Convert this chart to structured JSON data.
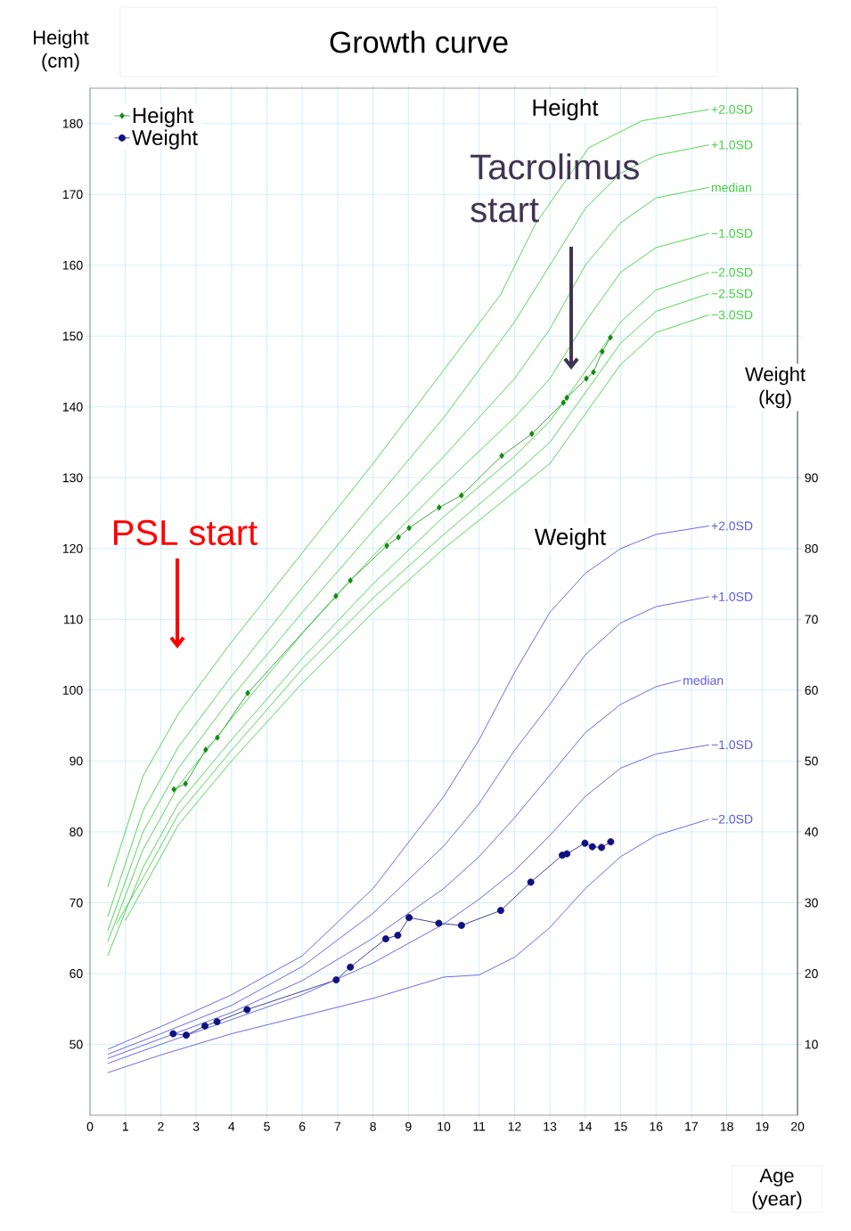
{
  "chart_data": {
    "type": "line",
    "title": "Growth curve",
    "xlabel": "Age (year)",
    "ylabel": "Height (cm)",
    "y2label": "Weight (kg)",
    "xlim": [
      0,
      20
    ],
    "xticks": [
      0,
      1,
      2,
      3,
      4,
      5,
      6,
      7,
      8,
      9,
      10,
      11,
      12,
      13,
      14,
      15,
      16,
      17,
      18,
      19,
      20
    ],
    "ylim": [
      40,
      185
    ],
    "yticks": [
      50,
      60,
      70,
      80,
      90,
      100,
      110,
      120,
      130,
      140,
      150,
      160,
      170,
      180
    ],
    "y2lim": [
      0,
      145
    ],
    "y2ticks": [
      10,
      20,
      30,
      40,
      50,
      60,
      70,
      80,
      90
    ],
    "grid": true,
    "legend": "top left",
    "annotations": [
      "PSL start",
      "Tacrolimus start",
      "Height",
      "Weight"
    ],
    "series": [
      {
        "name": "Height",
        "color": "#108a10",
        "marker": "diamond",
        "x": [
          2.37,
          2.7,
          3.27,
          3.6,
          4.46,
          6.95,
          7.36,
          8.39,
          8.72,
          9.02,
          9.87,
          10.5,
          11.64,
          12.49,
          13.38,
          13.48,
          14.03,
          14.23,
          14.48,
          14.71
        ],
        "values": [
          86.0,
          86.8,
          91.6,
          93.3,
          99.6,
          113.3,
          115.5,
          120.4,
          121.6,
          122.9,
          125.8,
          127.5,
          133.1,
          136.2,
          140.6,
          141.3,
          144.0,
          144.9,
          147.8,
          149.8
        ]
      },
      {
        "name": "Weight",
        "color": "#101080",
        "marker": "circle",
        "axis": "y2",
        "x": [
          2.35,
          2.72,
          3.25,
          3.59,
          4.44,
          6.96,
          7.36,
          8.36,
          8.7,
          9.02,
          9.86,
          10.5,
          11.61,
          12.46,
          13.35,
          13.48,
          13.99,
          14.2,
          14.46,
          14.72
        ],
        "values": [
          11.5,
          11.3,
          12.6,
          13.2,
          14.9,
          19.1,
          20.9,
          24.9,
          25.4,
          27.9,
          27.1,
          26.8,
          28.9,
          32.9,
          36.7,
          36.9,
          38.4,
          37.9,
          37.8,
          38.6
        ]
      },
      {
        "name": "+2.0SD",
        "color": "#44d044",
        "marker": "none",
        "x": [
          0.5,
          1.5,
          2.5,
          4,
          6,
          8,
          10,
          11.6,
          12.6,
          14.1,
          15.6,
          17.5
        ],
        "values": [
          72.2,
          87.9,
          96.7,
          106.8,
          119.4,
          132,
          145.2,
          155.8,
          165.9,
          176.6,
          180.4,
          182
        ]
      },
      {
        "name": "+1.0SD",
        "color": "#44d044",
        "marker": "none",
        "x": [
          0.5,
          1.5,
          2.5,
          4,
          6,
          8,
          10,
          12,
          13,
          14,
          15,
          16,
          17.5
        ],
        "values": [
          68,
          83,
          92,
          102,
          114.5,
          126.5,
          138.5,
          152,
          160,
          168,
          173,
          175.5,
          177
        ]
      },
      {
        "name": "median",
        "color": "#44d044",
        "marker": "none",
        "x": [
          0.5,
          1.5,
          2.5,
          4,
          6,
          8,
          10,
          12,
          13,
          14,
          15,
          16,
          17.5
        ],
        "values": [
          66,
          80,
          89,
          99,
          111,
          122.5,
          133,
          144,
          151,
          160,
          166,
          169.5,
          171
        ]
      },
      {
        "name": "−1.0SD",
        "color": "#44d044",
        "marker": "none",
        "x": [
          0.5,
          1.5,
          2.5,
          4,
          6,
          8,
          10,
          12,
          13,
          14,
          15,
          16,
          17.5
        ],
        "values": [
          64.5,
          77.5,
          86.5,
          96,
          108,
          119,
          129,
          138.5,
          144,
          152,
          159,
          162.5,
          164.5
        ]
      },
      {
        "name": "−2.0SD",
        "color": "#44d044",
        "marker": "none",
        "x": [
          0.5,
          1.5,
          2.5,
          4,
          6,
          8,
          10,
          12,
          13,
          14,
          15,
          16,
          17.5
        ],
        "values": [
          62.5,
          75,
          84,
          93,
          104.5,
          115,
          124.5,
          133,
          138,
          145,
          152,
          156.5,
          159
        ]
      },
      {
        "name": "−2.5SD",
        "color": "#44d044",
        "marker": "none",
        "x": [
          0.75,
          1.5,
          2.5,
          4,
          6,
          8,
          10,
          12,
          13,
          14,
          15,
          16,
          17.5
        ],
        "values": [
          67,
          73.5,
          82.5,
          91.5,
          103,
          113,
          122,
          130.5,
          135,
          142,
          149,
          153.5,
          156
        ]
      },
      {
        "name": "−3.0SD",
        "color": "#44d044",
        "marker": "none",
        "x": [
          1,
          1.5,
          2.5,
          4,
          6,
          8,
          10,
          12,
          13,
          14,
          15,
          16,
          17.5
        ],
        "values": [
          67.5,
          72,
          81,
          90,
          101,
          111,
          120,
          128,
          132,
          139,
          146,
          150.5,
          153
        ]
      },
      {
        "name": "+2.0SD",
        "color": "#5a5ae0",
        "marker": "none",
        "axis": "y2",
        "x": [
          0.5,
          2,
          4,
          6,
          8,
          10,
          11,
          12,
          13,
          14,
          15,
          16,
          17.5
        ],
        "values": [
          9.3,
          12.5,
          17,
          22.5,
          32,
          45,
          53,
          62.5,
          71,
          76.5,
          80,
          82,
          83.2
        ]
      },
      {
        "name": "+1.0SD",
        "color": "#5a5ae0",
        "marker": "none",
        "axis": "y2",
        "x": [
          0.5,
          2,
          4,
          6,
          8,
          10,
          11,
          12,
          13,
          14,
          15,
          16,
          17.5
        ],
        "values": [
          8.6,
          11.5,
          15.5,
          21,
          28.5,
          38,
          44,
          51.5,
          58,
          65,
          69.5,
          71.8,
          73.2
        ]
      },
      {
        "name": "median",
        "color": "#5a5ae0",
        "marker": "none",
        "axis": "y2",
        "x": [
          0.5,
          2,
          4,
          6,
          8,
          10,
          11,
          12,
          13,
          14,
          15,
          16,
          16.7
        ],
        "values": [
          8,
          10.8,
          14.5,
          19,
          25,
          32,
          36.5,
          42,
          48,
          54,
          58,
          60.5,
          61.4
        ]
      },
      {
        "name": "−1.0SD",
        "color": "#5a5ae0",
        "marker": "none",
        "axis": "y2",
        "x": [
          0.5,
          2,
          4,
          6,
          8,
          10,
          11,
          12,
          13,
          14,
          15,
          16,
          17.5
        ],
        "values": [
          7.3,
          10,
          13.5,
          17,
          21.5,
          27,
          30.5,
          34.5,
          39.5,
          45,
          49,
          51,
          52.3
        ]
      },
      {
        "name": "−2.0SD",
        "color": "#5a5ae0",
        "marker": "none",
        "axis": "y2",
        "x": [
          0.5,
          2,
          4,
          6,
          8,
          10,
          11,
          12,
          13,
          14,
          15,
          16,
          17.5
        ],
        "values": [
          6,
          8.5,
          11.5,
          14,
          16.5,
          19.5,
          19.8,
          22.3,
          26.5,
          32,
          36.5,
          39.5,
          41.8
        ]
      }
    ]
  }
}
